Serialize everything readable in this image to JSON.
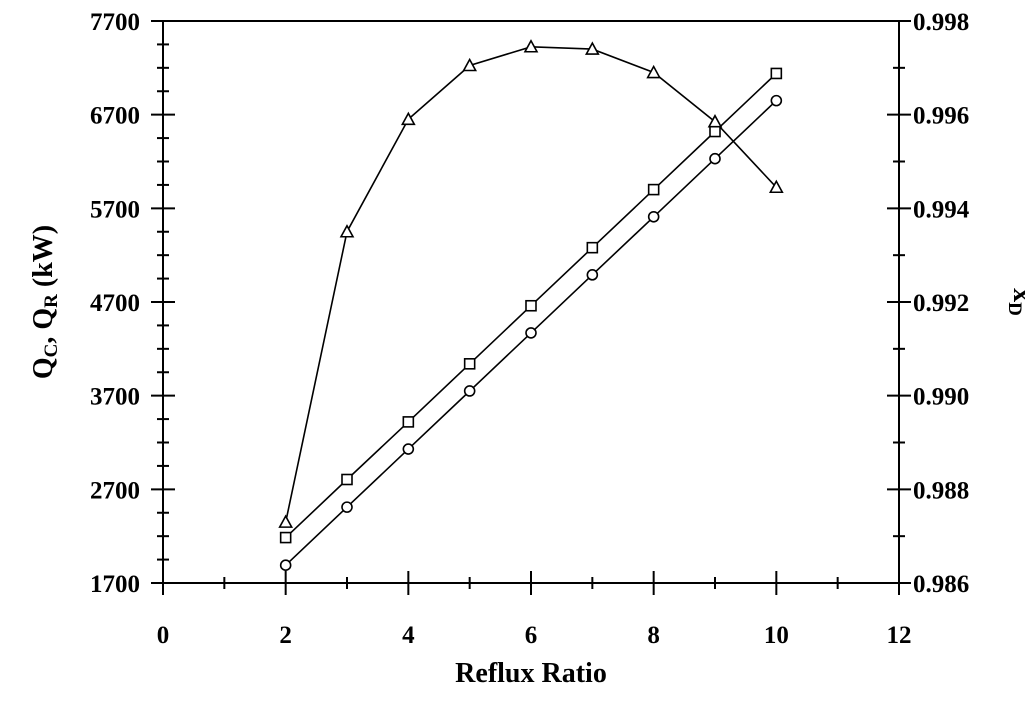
{
  "chart_data": {
    "type": "line",
    "xlabel": "Reflux Ratio",
    "ylabel_left": "Q",
    "ylabel_left_sub1": "C",
    "ylabel_left_mid": ", Q",
    "ylabel_left_sub2": "R",
    "ylabel_left_suffix": " (kW)",
    "ylabel_right": "x",
    "ylabel_right_sub": "D",
    "xlim": [
      0,
      12
    ],
    "ylim_left": [
      1700,
      7700
    ],
    "ylim_right": [
      0.986,
      0.998
    ],
    "x_ticks": [
      "0",
      "2",
      "4",
      "6",
      "8",
      "10",
      "12"
    ],
    "y_left_ticks": [
      "1700",
      "2700",
      "3700",
      "4700",
      "5700",
      "6700",
      "7700"
    ],
    "y_right_ticks": [
      "0.986",
      "0.988",
      "0.990",
      "0.992",
      "0.994",
      "0.996",
      "0.998"
    ],
    "grid": false,
    "series": [
      {
        "marker": "square",
        "axis": "left",
        "x": [
          2,
          3,
          4,
          5,
          6,
          7,
          8,
          9,
          10
        ],
        "values": [
          2185,
          2805,
          3420,
          4040,
          4660,
          5280,
          5900,
          6520,
          7140
        ]
      },
      {
        "marker": "circle",
        "axis": "left",
        "x": [
          2,
          3,
          4,
          5,
          6,
          7,
          8,
          9,
          10
        ],
        "values": [
          1890,
          2510,
          3130,
          3750,
          4370,
          4990,
          5610,
          6230,
          6850
        ]
      },
      {
        "marker": "triangle",
        "axis": "right",
        "x": [
          2,
          3,
          4,
          5,
          6,
          7,
          8,
          9,
          10
        ],
        "values": [
          0.9873,
          0.9935,
          0.9959,
          0.99705,
          0.99745,
          0.9974,
          0.9969,
          0.99585,
          0.99445
        ]
      }
    ]
  }
}
